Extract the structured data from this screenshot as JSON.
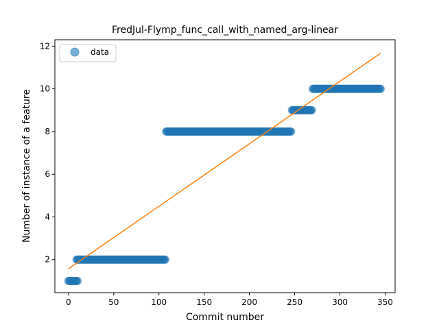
{
  "chart_data": {
    "type": "scatter",
    "title": "FredJul-Flymp_func_call_with_named_arg-linear",
    "xlabel": "Commit number",
    "ylabel": "Number of instance of a feature",
    "xlim": [
      -15,
      361
    ],
    "ylim": [
      0.45,
      12.3
    ],
    "xticks": [
      0,
      50,
      100,
      150,
      200,
      250,
      300,
      350
    ],
    "yticks": [
      2,
      4,
      6,
      8,
      10,
      12
    ],
    "legend": {
      "position": "top-left",
      "entries": [
        "data"
      ]
    },
    "grid": false,
    "colors": {
      "data": "#1f77b4",
      "fit": "#ff7f0e"
    },
    "series": [
      {
        "name": "data",
        "kind": "scatter",
        "segments": [
          {
            "x_start": 0,
            "x_end": 10,
            "y": 1
          },
          {
            "x_start": 9,
            "x_end": 107,
            "y": 2
          },
          {
            "x_start": 108,
            "x_end": 246,
            "y": 8
          },
          {
            "x_start": 247,
            "x_end": 269,
            "y": 9
          },
          {
            "x_start": 270,
            "x_end": 345,
            "y": 10
          }
        ]
      },
      {
        "kind": "line",
        "x": [
          0,
          345
        ],
        "y": [
          1.57,
          11.67
        ]
      }
    ]
  }
}
